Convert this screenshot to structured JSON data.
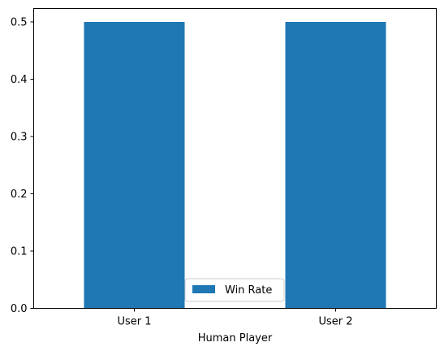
{
  "chart_data": {
    "type": "bar",
    "categories": [
      "User 1",
      "User 2"
    ],
    "series": [
      {
        "name": "Win Rate",
        "values": [
          0.5,
          0.5
        ],
        "color": "#1f77b4"
      }
    ],
    "title": "",
    "xlabel": "Human Player",
    "ylabel": "",
    "ylim": [
      0,
      0.5
    ],
    "yticks": [
      0.0,
      0.1,
      0.2,
      0.3,
      0.4,
      0.5
    ],
    "ytick_labels": [
      "0.0",
      "0.1",
      "0.2",
      "0.3",
      "0.4",
      "0.5"
    ],
    "grid": false,
    "legend_position": "lower-center"
  }
}
